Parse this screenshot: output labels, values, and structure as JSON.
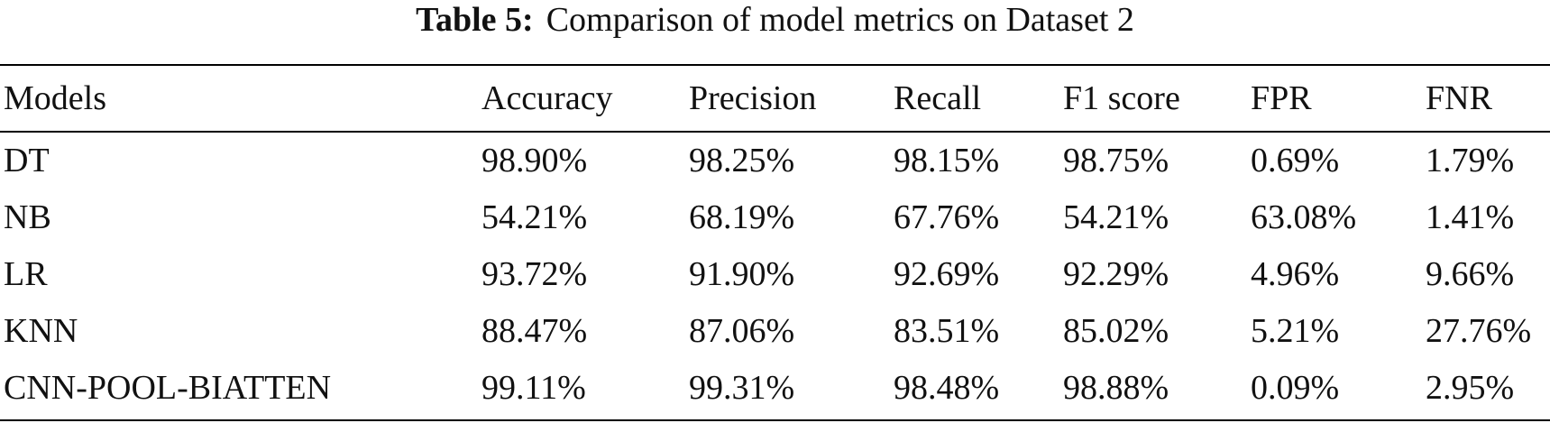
{
  "caption": {
    "label": "Table 5:",
    "text": "Comparison of model metrics on Dataset 2"
  },
  "table": {
    "headers": [
      "Models",
      "Accuracy",
      "Precision",
      "Recall",
      "F1 score",
      "FPR",
      "FNR"
    ],
    "rows": [
      {
        "model": "DT",
        "accuracy": "98.90%",
        "precision": "98.25%",
        "recall": "98.15%",
        "f1": "98.75%",
        "fpr": "0.69%",
        "fnr": "1.79%",
        "bold": [
          "fnr"
        ]
      },
      {
        "model": "NB",
        "accuracy": "54.21%",
        "precision": "68.19%",
        "recall": "67.76%",
        "f1": "54.21%",
        "fpr": "63.08%",
        "fnr": "1.41%",
        "bold": []
      },
      {
        "model": "LR",
        "accuracy": "93.72%",
        "precision": "91.90%",
        "recall": "92.69%",
        "f1": "92.29%",
        "fpr": "4.96%",
        "fnr": "9.66%",
        "bold": []
      },
      {
        "model": "KNN",
        "accuracy": "88.47%",
        "precision": "87.06%",
        "recall": "83.51%",
        "f1": "85.02%",
        "fpr": "5.21%",
        "fnr": "27.76%",
        "bold": []
      },
      {
        "model": "CNN-POOL-BIATTEN",
        "accuracy": "99.11%",
        "precision": "99.31%",
        "recall": "98.48%",
        "f1": "98.88%",
        "fpr": "0.09%",
        "fnr": "2.95%",
        "bold": []
      }
    ]
  }
}
